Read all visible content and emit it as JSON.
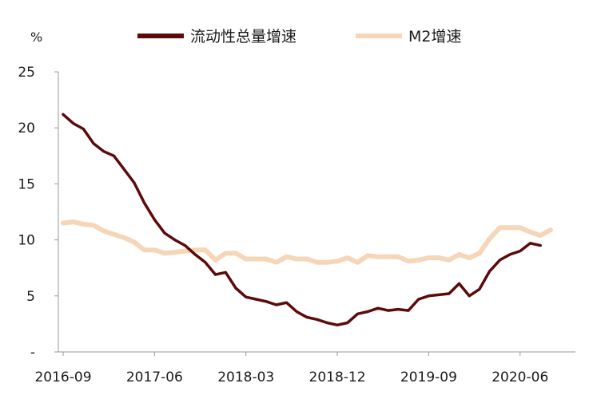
{
  "chart_data": {
    "type": "line",
    "unit": "%",
    "x_tick_labels": [
      "2016-09",
      "2017-06",
      "2018-03",
      "2018-12",
      "2019-09",
      "2020-06"
    ],
    "y_tick_labels": [
      "-",
      "5",
      "10",
      "15",
      "20",
      "25"
    ],
    "ylim": [
      0,
      25
    ],
    "grid": false,
    "legend_position": "top",
    "x": [
      "2016-09",
      "2016-10",
      "2016-11",
      "2016-12",
      "2017-01",
      "2017-02",
      "2017-03",
      "2017-04",
      "2017-05",
      "2017-06",
      "2017-07",
      "2017-08",
      "2017-09",
      "2017-10",
      "2017-11",
      "2017-12",
      "2018-01",
      "2018-02",
      "2018-03",
      "2018-04",
      "2018-05",
      "2018-06",
      "2018-07",
      "2018-08",
      "2018-09",
      "2018-10",
      "2018-11",
      "2018-12",
      "2019-01",
      "2019-02",
      "2019-03",
      "2019-04",
      "2019-05",
      "2019-06",
      "2019-07",
      "2019-08",
      "2019-09",
      "2019-10",
      "2019-11",
      "2019-12",
      "2020-01",
      "2020-02",
      "2020-03",
      "2020-04",
      "2020-05",
      "2020-06",
      "2020-07",
      "2020-08",
      "2020-09",
      "2020-10",
      "2020-11",
      "2020-12"
    ],
    "series": [
      {
        "name": "流动性总量增速",
        "color": "#5c0a0a",
        "values": [
          21.2,
          20.4,
          19.9,
          18.6,
          17.9,
          17.5,
          16.3,
          15.1,
          13.3,
          11.8,
          10.6,
          10.0,
          9.5,
          8.7,
          8.0,
          6.9,
          7.1,
          5.7,
          4.9,
          4.7,
          4.5,
          4.2,
          4.4,
          3.6,
          3.1,
          2.9,
          2.6,
          2.4,
          2.6,
          3.4,
          3.6,
          3.9,
          3.7,
          3.8,
          3.7,
          4.7,
          5.0,
          5.1,
          5.2,
          6.1,
          5.0,
          5.6,
          7.2,
          8.2,
          8.7,
          9.0,
          9.7,
          9.5,
          null,
          null,
          null,
          null
        ]
      },
      {
        "name": "M2增速",
        "color": "#f6d5b9",
        "values": [
          11.5,
          11.6,
          11.4,
          11.3,
          10.8,
          10.5,
          10.2,
          9.8,
          9.1,
          9.1,
          8.8,
          8.9,
          9.0,
          9.1,
          9.1,
          8.2,
          8.8,
          8.8,
          8.3,
          8.3,
          8.3,
          8.0,
          8.5,
          8.3,
          8.3,
          8.0,
          8.0,
          8.1,
          8.4,
          8.0,
          8.6,
          8.5,
          8.5,
          8.5,
          8.1,
          8.2,
          8.4,
          8.4,
          8.2,
          8.7,
          8.4,
          8.8,
          10.1,
          11.1,
          11.1,
          11.1,
          10.7,
          10.4,
          10.9,
          null,
          null,
          null
        ]
      }
    ]
  }
}
